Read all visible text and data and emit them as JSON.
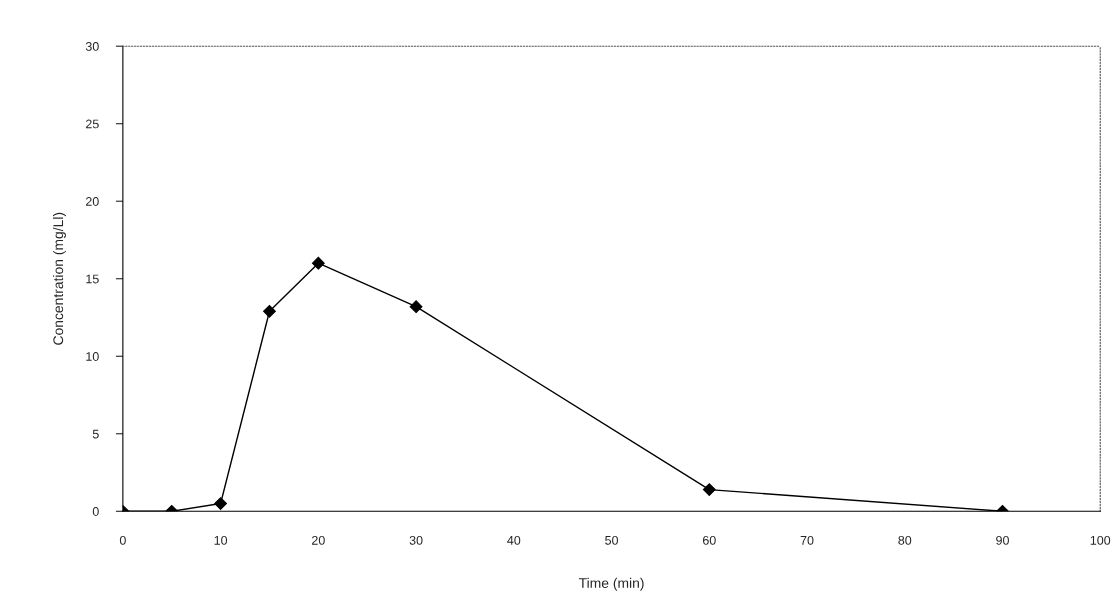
{
  "chart_data": {
    "type": "line",
    "xlabel": "Time (min)",
    "ylabel": "Concentration (mg/Ll)",
    "x": [
      0,
      5,
      10,
      15,
      20,
      30,
      60,
      90
    ],
    "series": [
      {
        "color": "#000000",
        "values": [
          0,
          0,
          0.5,
          12.9,
          16,
          13.2,
          1.4,
          0
        ]
      }
    ],
    "xlim": [
      0,
      100
    ],
    "xticks": [
      0,
      10,
      20,
      30,
      40,
      50,
      60,
      70,
      80,
      90,
      100
    ],
    "ylim": [
      0,
      30
    ],
    "yticks": [
      0,
      5,
      10,
      15,
      20,
      25,
      30
    ],
    "marker": "diamond",
    "line_style": "solid",
    "grid": false,
    "legend": false
  }
}
